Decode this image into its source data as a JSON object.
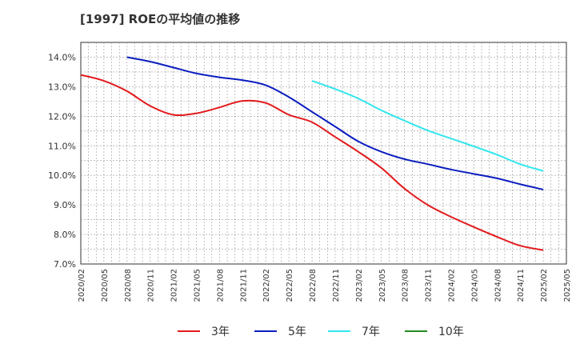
{
  "title": "[1997]  ROEの平均値の推移",
  "chart_data": {
    "type": "line",
    "title": "[1997]  ROEの平均値の推移",
    "xlabel": "",
    "ylabel": "",
    "ylim": [
      7.0,
      14.5
    ],
    "y_ticks": [
      7.0,
      8.0,
      9.0,
      10.0,
      11.0,
      12.0,
      13.0,
      14.0
    ],
    "y_tick_labels": [
      "7.0%",
      "8.0%",
      "9.0%",
      "10.0%",
      "11.0%",
      "12.0%",
      "13.0%",
      "14.0%"
    ],
    "x_tick_labels": [
      "2020/02",
      "2020/05",
      "2020/08",
      "2020/11",
      "2021/02",
      "2021/05",
      "2021/08",
      "2021/11",
      "2022/02",
      "2022/05",
      "2022/08",
      "2022/11",
      "2023/02",
      "2023/05",
      "2023/08",
      "2023/11",
      "2024/02",
      "2024/05",
      "2024/08",
      "2024/11",
      "2025/02",
      "2025/05"
    ],
    "grid": true,
    "legend_position": "bottom",
    "series": [
      {
        "name": "3年",
        "color": "#e31a1c",
        "points": [
          [
            "2020/02",
            13.4
          ],
          [
            "2020/05",
            13.2
          ],
          [
            "2020/08",
            12.85
          ],
          [
            "2020/11",
            12.35
          ],
          [
            "2021/02",
            12.05
          ],
          [
            "2021/05",
            12.1
          ],
          [
            "2021/08",
            12.3
          ],
          [
            "2021/11",
            12.52
          ],
          [
            "2022/02",
            12.45
          ],
          [
            "2022/05",
            12.05
          ],
          [
            "2022/08",
            11.8
          ],
          [
            "2022/11",
            11.3
          ],
          [
            "2023/02",
            10.8
          ],
          [
            "2023/05",
            10.25
          ],
          [
            "2023/08",
            9.55
          ],
          [
            "2023/11",
            9.0
          ],
          [
            "2024/02",
            8.6
          ],
          [
            "2024/05",
            8.25
          ],
          [
            "2024/08",
            7.92
          ],
          [
            "2024/11",
            7.62
          ],
          [
            "2025/02",
            7.47
          ]
        ]
      },
      {
        "name": "5年",
        "color": "#0a1dbf",
        "points": [
          [
            "2020/08",
            14.0
          ],
          [
            "2020/11",
            13.85
          ],
          [
            "2021/02",
            13.65
          ],
          [
            "2021/05",
            13.45
          ],
          [
            "2021/08",
            13.32
          ],
          [
            "2021/11",
            13.22
          ],
          [
            "2022/02",
            13.05
          ],
          [
            "2022/05",
            12.65
          ],
          [
            "2022/08",
            12.15
          ],
          [
            "2022/11",
            11.65
          ],
          [
            "2023/02",
            11.15
          ],
          [
            "2023/05",
            10.8
          ],
          [
            "2023/08",
            10.55
          ],
          [
            "2023/11",
            10.38
          ],
          [
            "2024/02",
            10.2
          ],
          [
            "2024/05",
            10.05
          ],
          [
            "2024/08",
            9.9
          ],
          [
            "2024/11",
            9.7
          ],
          [
            "2025/02",
            9.52
          ]
        ]
      },
      {
        "name": "7年",
        "color": "#33e6ee",
        "points": [
          [
            "2022/08",
            13.2
          ],
          [
            "2022/11",
            12.92
          ],
          [
            "2023/02",
            12.6
          ],
          [
            "2023/05",
            12.2
          ],
          [
            "2023/08",
            11.85
          ],
          [
            "2023/11",
            11.52
          ],
          [
            "2024/02",
            11.25
          ],
          [
            "2024/05",
            10.98
          ],
          [
            "2024/08",
            10.7
          ],
          [
            "2024/11",
            10.38
          ],
          [
            "2025/02",
            10.15
          ]
        ]
      },
      {
        "name": "10年",
        "color": "#228b22",
        "points": []
      }
    ]
  }
}
